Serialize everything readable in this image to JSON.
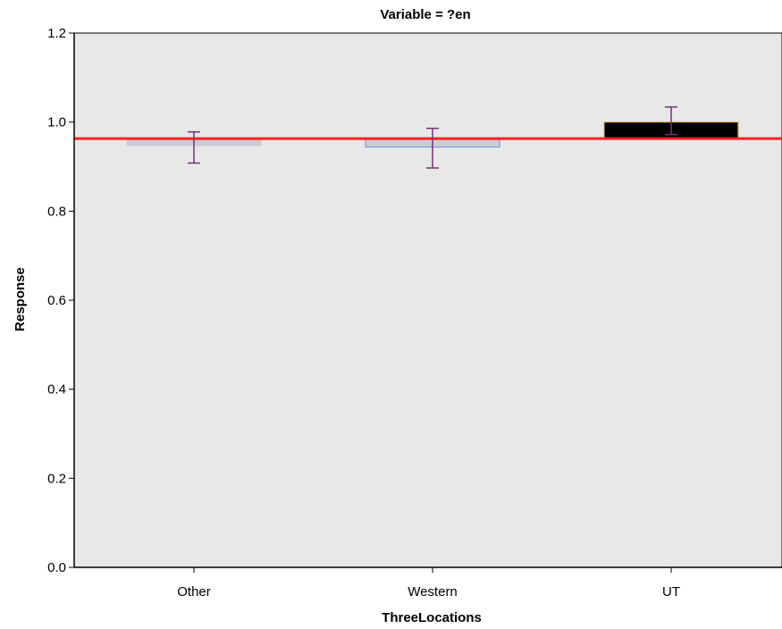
{
  "chart_data": {
    "type": "bar",
    "title": "Variable = ?en",
    "xlabel": "ThreeLocations",
    "ylabel": "Response",
    "categories": [
      "Other",
      "Western",
      "UT"
    ],
    "values": [
      0.947,
      0.944,
      1.0
    ],
    "error_bars": [
      {
        "low": 0.908,
        "high": 0.978
      },
      {
        "low": 0.897,
        "high": 0.986
      },
      {
        "low": 0.972,
        "high": 1.034
      }
    ],
    "bar_colors": [
      "#c9cdd6",
      "#c9cdd6",
      "#000000"
    ],
    "bar_edge_colors": [
      "#c9cdd6",
      "#7f9fcf",
      "#d4b040"
    ],
    "error_bar_color": "#7a2f7a",
    "reference_line": {
      "value": 0.963,
      "color": "#ff2020"
    },
    "ylim": [
      0.0,
      1.2
    ],
    "yticks": [
      "0.0",
      "0.2",
      "0.4",
      "0.6",
      "0.8",
      "1.0",
      "1.2"
    ],
    "ytick_values": [
      0.0,
      0.2,
      0.4,
      0.6,
      0.8,
      1.0,
      1.2
    ],
    "grid": false,
    "plot_background": "#e8e8e8"
  }
}
